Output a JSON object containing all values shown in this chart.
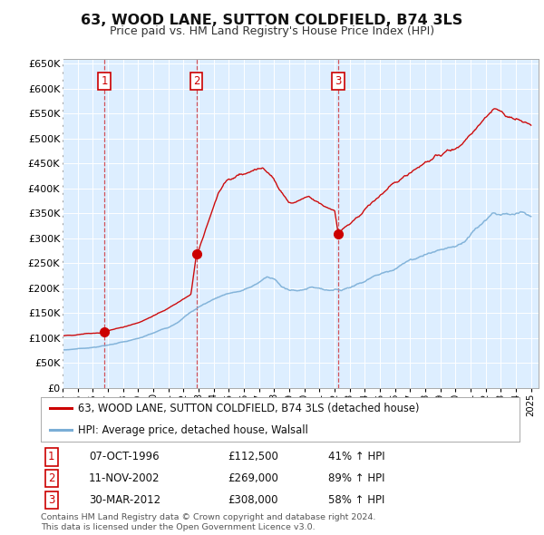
{
  "title": "63, WOOD LANE, SUTTON COLDFIELD, B74 3LS",
  "subtitle": "Price paid vs. HM Land Registry's House Price Index (HPI)",
  "legend_line1": "63, WOOD LANE, SUTTON COLDFIELD, B74 3LS (detached house)",
  "legend_line2": "HPI: Average price, detached house, Walsall",
  "tx_info": [
    {
      "num": "1",
      "date": "07-OCT-1996",
      "price": "£112,500",
      "pct": "41% ↑ HPI",
      "year": 1996.769,
      "val": 112500
    },
    {
      "num": "2",
      "date": "11-NOV-2002",
      "price": "£269,000",
      "pct": "89% ↑ HPI",
      "year": 2002.862,
      "val": 269000
    },
    {
      "num": "3",
      "date": "30-MAR-2012",
      "price": "£308,000",
      "pct": "58% ↑ HPI",
      "year": 2012.247,
      "val": 308000
    }
  ],
  "footer": "Contains HM Land Registry data © Crown copyright and database right 2024.\nThis data is licensed under the Open Government Licence v3.0.",
  "property_color": "#cc0000",
  "hpi_color": "#7aaed6",
  "plot_bg_color": "#ddeeff",
  "ylim": [
    0,
    660000
  ],
  "ytick_step": 50000,
  "xstart": 1994.0,
  "xend": 2025.5,
  "figsize": [
    6.0,
    5.9
  ],
  "dpi": 100
}
